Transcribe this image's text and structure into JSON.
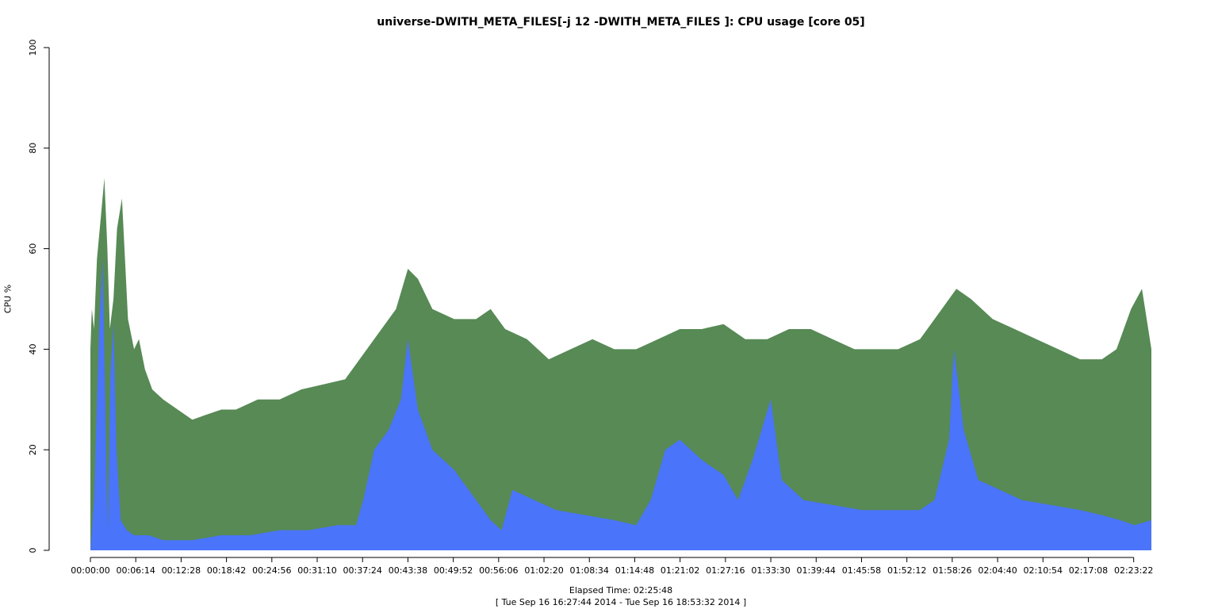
{
  "chart_data": {
    "type": "area",
    "title": "universe-DWITH_META_FILES[-j 12 -DWITH_META_FILES ]: CPU usage [core 05]",
    "xlabel": "Elapsed Time: 02:25:48",
    "subtitle": "[ Tue Sep 16 16:27:44 2014 - Tue Sep 16 18:53:32 2014 ]",
    "ylabel": "CPU %",
    "ylim": [
      0,
      100
    ],
    "yticks": [
      0,
      20,
      40,
      60,
      80,
      100
    ],
    "x_range_seconds": [
      0,
      8748
    ],
    "xticks": [
      "00:00:00",
      "00:06:14",
      "00:12:28",
      "00:18:42",
      "00:24:56",
      "00:31:10",
      "00:37:24",
      "00:43:38",
      "00:49:52",
      "00:56:06",
      "01:02:20",
      "01:08:34",
      "01:14:48",
      "01:21:02",
      "01:27:16",
      "01:33:30",
      "01:39:44",
      "01:45:58",
      "01:52:12",
      "01:58:26",
      "02:04:40",
      "02:10:54",
      "02:17:08",
      "02:23:22"
    ],
    "colors": {
      "total": "#578a55",
      "system": "#4a74fa"
    },
    "series": [
      {
        "key": "total",
        "x": [
          "00:00:00",
          "00:00:12",
          "00:00:30",
          "00:00:54",
          "00:01:25",
          "00:01:55",
          "00:02:20",
          "00:02:40",
          "00:03:10",
          "00:03:40",
          "00:04:20",
          "00:05:10",
          "00:06:00",
          "00:06:40",
          "00:07:30",
          "00:08:30",
          "00:10:00",
          "00:12:00",
          "00:14:00",
          "00:16:00",
          "00:18:00",
          "00:20:00",
          "00:23:00",
          "00:26:00",
          "00:29:00",
          "00:32:00",
          "00:35:00",
          "00:38:00",
          "00:40:00",
          "00:42:00",
          "00:43:38",
          "00:45:00",
          "00:47:00",
          "00:50:00",
          "00:53:00",
          "00:55:00",
          "00:57:00",
          "01:00:00",
          "01:03:00",
          "01:06:00",
          "01:09:00",
          "01:12:00",
          "01:15:00",
          "01:18:00",
          "01:21:00",
          "01:24:00",
          "01:27:00",
          "01:30:00",
          "01:33:00",
          "01:36:00",
          "01:39:00",
          "01:42:00",
          "01:45:00",
          "01:48:00",
          "01:51:00",
          "01:54:00",
          "01:57:00",
          "01:59:00",
          "02:01:00",
          "02:04:00",
          "02:07:00",
          "02:10:00",
          "02:13:00",
          "02:16:00",
          "02:19:00",
          "02:21:00",
          "02:23:00",
          "02:24:30",
          "02:25:48"
        ],
        "y": [
          40,
          48,
          44,
          58,
          66,
          74,
          60,
          44,
          50,
          64,
          70,
          46,
          40,
          42,
          36,
          32,
          30,
          28,
          26,
          27,
          28,
          28,
          30,
          30,
          32,
          33,
          34,
          40,
          44,
          48,
          56,
          54,
          48,
          46,
          46,
          48,
          44,
          42,
          38,
          40,
          42,
          40,
          40,
          42,
          44,
          44,
          45,
          42,
          42,
          44,
          44,
          42,
          40,
          40,
          40,
          42,
          48,
          52,
          50,
          46,
          44,
          42,
          40,
          38,
          38,
          40,
          48,
          52,
          40
        ]
      },
      {
        "key": "system",
        "x": [
          "00:00:00",
          "00:00:10",
          "00:00:30",
          "00:00:54",
          "00:01:15",
          "00:01:40",
          "00:02:10",
          "00:02:25",
          "00:02:45",
          "00:03:10",
          "00:03:35",
          "00:04:10",
          "00:05:00",
          "00:06:00",
          "00:08:00",
          "00:10:00",
          "00:14:00",
          "00:18:00",
          "00:22:00",
          "00:26:00",
          "00:30:00",
          "00:34:00",
          "00:36:30",
          "00:37:30",
          "00:39:00",
          "00:41:00",
          "00:42:40",
          "00:43:38",
          "00:45:00",
          "00:47:00",
          "00:50:00",
          "00:53:00",
          "00:55:00",
          "00:56:30",
          "00:58:00",
          "01:01:00",
          "01:04:00",
          "01:08:00",
          "01:12:00",
          "01:15:00",
          "01:17:00",
          "01:19:00",
          "01:21:00",
          "01:24:00",
          "01:27:00",
          "01:29:00",
          "01:31:00",
          "01:33:30",
          "01:35:00",
          "01:38:00",
          "01:42:00",
          "01:46:00",
          "01:50:00",
          "01:54:00",
          "01:56:00",
          "01:58:00",
          "01:58:40",
          "02:00:00",
          "02:02:00",
          "02:05:00",
          "02:08:00",
          "02:12:00",
          "02:16:00",
          "02:19:00",
          "02:21:30",
          "02:23:30",
          "02:25:48"
        ],
        "y": [
          0,
          3,
          10,
          30,
          46,
          58,
          20,
          4,
          35,
          45,
          20,
          6,
          4,
          3,
          3,
          2,
          2,
          3,
          3,
          4,
          4,
          5,
          5,
          10,
          20,
          24,
          30,
          42,
          28,
          20,
          16,
          10,
          6,
          4,
          12,
          10,
          8,
          7,
          6,
          5,
          10,
          20,
          22,
          18,
          15,
          10,
          18,
          30,
          14,
          10,
          9,
          8,
          8,
          8,
          10,
          22,
          40,
          24,
          14,
          12,
          10,
          9,
          8,
          7,
          6,
          5,
          6
        ]
      }
    ]
  }
}
